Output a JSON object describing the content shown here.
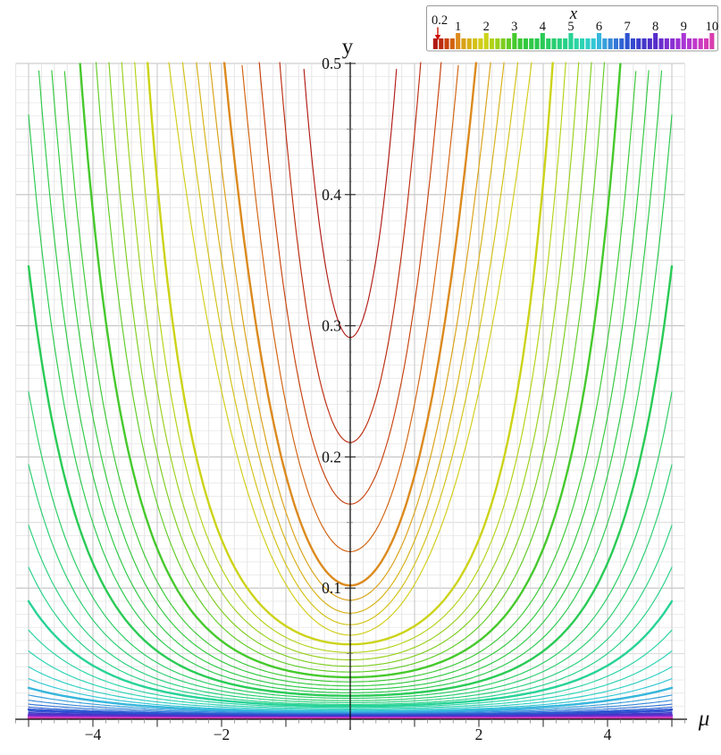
{
  "figure": {
    "kind": "curve-family-plot",
    "background": "#ffffff"
  },
  "axes": {
    "y_label": "y",
    "x_label": "μ",
    "x_range_data": [
      -5,
      5
    ],
    "x_range_frame": [
      -5.2,
      5.2
    ],
    "y_range": [
      0,
      0.5
    ],
    "y_tick_labels": [
      {
        "v": 0.5,
        "label": "0.5"
      },
      {
        "v": 0.4,
        "label": "0.4"
      },
      {
        "v": 0.3,
        "label": "0.3"
      },
      {
        "v": 0.2,
        "label": "0.2"
      },
      {
        "v": 0.1,
        "label": "0.1"
      }
    ],
    "x_tick_labels": [
      {
        "v": -4,
        "label": "−4"
      },
      {
        "v": -2,
        "label": "−2"
      },
      {
        "v": 2,
        "label": "2"
      },
      {
        "v": 4,
        "label": "4"
      }
    ],
    "x_minor_step": 0.2,
    "x_major_step": 1.0,
    "y_minor_step": 0.01,
    "y_medium_step": 0.05,
    "y_major_step": 0.1
  },
  "legend": {
    "title": "x",
    "tick_labels": [
      "0.2",
      "1",
      "2",
      "3",
      "4",
      "5",
      "6",
      "7",
      "8",
      "9",
      "10"
    ],
    "tick_values": [
      0.2,
      1,
      2,
      3,
      4,
      5,
      6,
      7,
      8,
      9,
      10
    ],
    "range": [
      0.2,
      10
    ],
    "segment_step": 0.2,
    "segment_count": 50,
    "tall_segments_at": [
      1,
      2,
      3,
      4,
      5,
      6,
      7,
      8,
      9,
      10
    ],
    "out_of_range_arrow": {
      "side": "left",
      "color": "#cc1100",
      "glyph": "↓"
    },
    "border_color": "#999999"
  },
  "palette_stops": [
    [
      0.2,
      "#b11a15"
    ],
    [
      0.4,
      "#bd2c10"
    ],
    [
      0.6,
      "#c8420e"
    ],
    [
      0.8,
      "#d2630f"
    ],
    [
      1.0,
      "#dc8a1e"
    ],
    [
      1.2,
      "#d9a115"
    ],
    [
      1.4,
      "#d6b115"
    ],
    [
      1.6,
      "#d3c116"
    ],
    [
      1.8,
      "#d2cd18"
    ],
    [
      2.0,
      "#ccd318"
    ],
    [
      2.2,
      "#b3d318"
    ],
    [
      2.4,
      "#99d01b"
    ],
    [
      2.6,
      "#7ecd1f"
    ],
    [
      2.8,
      "#61cb26"
    ],
    [
      3.0,
      "#46c92d"
    ],
    [
      3.4,
      "#32c93e"
    ],
    [
      3.8,
      "#2bc94e"
    ],
    [
      4.0,
      "#2acb56"
    ],
    [
      4.4,
      "#28ce70"
    ],
    [
      4.8,
      "#27d189"
    ],
    [
      5.0,
      "#27d396"
    ],
    [
      5.4,
      "#2bd4b4"
    ],
    [
      5.8,
      "#33c8d5"
    ],
    [
      6.0,
      "#36b6dc"
    ],
    [
      6.4,
      "#3789d9"
    ],
    [
      6.8,
      "#3163d4"
    ],
    [
      7.0,
      "#2d54d1"
    ],
    [
      7.4,
      "#3b3ecb"
    ],
    [
      7.8,
      "#4e2ec8"
    ],
    [
      8.0,
      "#582dca"
    ],
    [
      8.4,
      "#7a2fd0"
    ],
    [
      8.8,
      "#9b31d4"
    ],
    [
      9.0,
      "#a934d5"
    ],
    [
      9.4,
      "#c037cb"
    ],
    [
      9.8,
      "#d43bb7"
    ],
    [
      10.0,
      "#d93dae"
    ]
  ],
  "chart_data": {
    "type": "line",
    "xlabel": "μ",
    "ylabel": "y",
    "parameter_label": "x",
    "xlim": [
      -5.2,
      5.2
    ],
    "ylim": [
      0,
      0.5
    ],
    "grid": "on",
    "legend_position": "top-right",
    "mu_domain": [
      -5,
      5
    ],
    "model": "each curve: y(μ) = y0*(1+μ²/s2)^1.5 (form 'pow') or y0*exp(a*μ²) (form 'exp'); clipped to 0 ≤ y ≤ 0.5; thick strokes at integer x",
    "curves": [
      {
        "x": 0.2,
        "y0": 0.291,
        "form": "pow",
        "p": 1.217,
        "thick": false
      },
      {
        "x": 0.4,
        "y0": 0.211,
        "form": "pow",
        "p": 1.54,
        "thick": false
      },
      {
        "x": 0.6,
        "y0": 0.164,
        "form": "pow",
        "p": 1.81,
        "thick": false
      },
      {
        "x": 0.8,
        "y0": 0.1278,
        "form": "pow",
        "p": 1.91,
        "thick": false
      },
      {
        "x": 1.0,
        "y0": 0.102,
        "form": "pow",
        "p": 2.03,
        "thick": true
      },
      {
        "x": 1.2,
        "y0": 0.0908,
        "form": "pow",
        "p": 2.245,
        "thick": false
      },
      {
        "x": 1.4,
        "y0": 0.0809,
        "form": "pow",
        "p": 2.41,
        "thick": false
      },
      {
        "x": 1.6,
        "y0": 0.0721,
        "form": "pow",
        "p": 2.57,
        "thick": false
      },
      {
        "x": 1.8,
        "y0": 0.0642,
        "form": "pow",
        "p": 2.71,
        "thick": false
      },
      {
        "x": 2.0,
        "y0": 0.0571,
        "form": "exp",
        "p": 0.2188,
        "thick": true
      },
      {
        "x": 2.2,
        "y0": 0.0509,
        "form": "exp",
        "p": 0.2036,
        "thick": false
      },
      {
        "x": 2.4,
        "y0": 0.0453,
        "form": "exp",
        "p": 0.1904,
        "thick": false
      },
      {
        "x": 2.6,
        "y0": 0.0404,
        "form": "exp",
        "p": 0.1789,
        "thick": false
      },
      {
        "x": 2.8,
        "y0": 0.036,
        "form": "exp",
        "p": 0.1686,
        "thick": false
      },
      {
        "x": 3.0,
        "y0": 0.032,
        "form": "exp",
        "p": 0.1558,
        "thick": true
      },
      {
        "x": 3.2,
        "y0": 0.0285,
        "form": "exp",
        "p": 0.1447,
        "thick": false
      },
      {
        "x": 3.4,
        "y0": 0.0254,
        "form": "exp",
        "p": 0.1379,
        "thick": false
      },
      {
        "x": 3.6,
        "y0": 0.0226,
        "form": "exp",
        "p": 0.1317,
        "thick": false
      },
      {
        "x": 3.8,
        "y0": 0.0202,
        "form": "exp",
        "p": 0.1251,
        "thick": false
      },
      {
        "x": 4.0,
        "y0": 0.0179,
        "form": "exp",
        "p": 0.1184,
        "thick": true
      },
      {
        "x": 4.2,
        "y0": 0.016,
        "form": "exp",
        "p": 0.1099,
        "thick": false
      },
      {
        "x": 4.4,
        "y0": 0.0142,
        "form": "exp",
        "p": 0.1046,
        "thick": false
      },
      {
        "x": 4.6,
        "y0": 0.0127,
        "form": "exp",
        "p": 0.0982,
        "thick": false
      },
      {
        "x": 4.8,
        "y0": 0.0113,
        "form": "exp",
        "p": 0.0931,
        "thick": false
      },
      {
        "x": 5.0,
        "y0": 0.0101,
        "form": "exp",
        "p": 0.0875,
        "thick": true
      },
      {
        "x": 5.2,
        "y0": 0.009,
        "form": "exp",
        "p": 0.0809,
        "thick": false
      },
      {
        "x": 5.4,
        "y0": 0.008,
        "form": "exp",
        "p": 0.0749,
        "thick": false
      },
      {
        "x": 5.6,
        "y0": 0.0071,
        "form": "exp",
        "p": 0.0691,
        "thick": false
      },
      {
        "x": 5.8,
        "y0": 0.0063,
        "form": "exp",
        "p": 0.0637,
        "thick": false
      },
      {
        "x": 6.0,
        "y0": 0.0056,
        "form": "exp",
        "p": 0.0582,
        "thick": true
      },
      {
        "x": 6.2,
        "y0": 0.005,
        "form": "exp",
        "p": 0.0523,
        "thick": false
      },
      {
        "x": 6.4,
        "y0": 0.0045,
        "form": "exp",
        "p": 0.0468,
        "thick": false
      },
      {
        "x": 6.6,
        "y0": 0.004,
        "form": "exp",
        "p": 0.0422,
        "thick": false
      },
      {
        "x": 6.8,
        "y0": 0.0036,
        "form": "exp",
        "p": 0.0375,
        "thick": false
      },
      {
        "x": 7.0,
        "y0": 0.0032,
        "form": "exp",
        "p": 0.0335,
        "thick": true
      },
      {
        "x": 7.2,
        "y0": 0.00285,
        "form": "exp",
        "p": 0.0305,
        "thick": false
      },
      {
        "x": 7.4,
        "y0": 0.00254,
        "form": "exp",
        "p": 0.0277,
        "thick": false
      },
      {
        "x": 7.6,
        "y0": 0.00227,
        "form": "exp",
        "p": 0.0259,
        "thick": false
      },
      {
        "x": 7.8,
        "y0": 0.00202,
        "form": "exp",
        "p": 0.0235,
        "thick": false
      },
      {
        "x": 8.0,
        "y0": 0.0018,
        "form": "exp",
        "p": 0.0224,
        "thick": true
      },
      {
        "x": 8.2,
        "y0": 0.00161,
        "form": "exp",
        "p": 0.0214,
        "thick": false
      },
      {
        "x": 8.4,
        "y0": 0.00143,
        "form": "exp",
        "p": 0.0199,
        "thick": false
      },
      {
        "x": 8.6,
        "y0": 0.00128,
        "form": "exp",
        "p": 0.0188,
        "thick": false
      },
      {
        "x": 8.8,
        "y0": 0.00114,
        "form": "exp",
        "p": 0.0185,
        "thick": false
      },
      {
        "x": 9.0,
        "y0": 0.00102,
        "form": "exp",
        "p": 0.0183,
        "thick": true
      },
      {
        "x": 9.2,
        "y0": 0.00091,
        "form": "exp",
        "p": 0.0182,
        "thick": false
      },
      {
        "x": 9.4,
        "y0": 0.00081,
        "form": "exp",
        "p": 0.018,
        "thick": false
      },
      {
        "x": 9.6,
        "y0": 0.00072,
        "form": "exp",
        "p": 0.0178,
        "thick": false
      },
      {
        "x": 9.8,
        "y0": 0.00064,
        "form": "exp",
        "p": 0.0176,
        "thick": false
      },
      {
        "x": 10.0,
        "y0": 0.00057,
        "form": "exp",
        "p": 0.0174,
        "thick": true
      }
    ]
  }
}
